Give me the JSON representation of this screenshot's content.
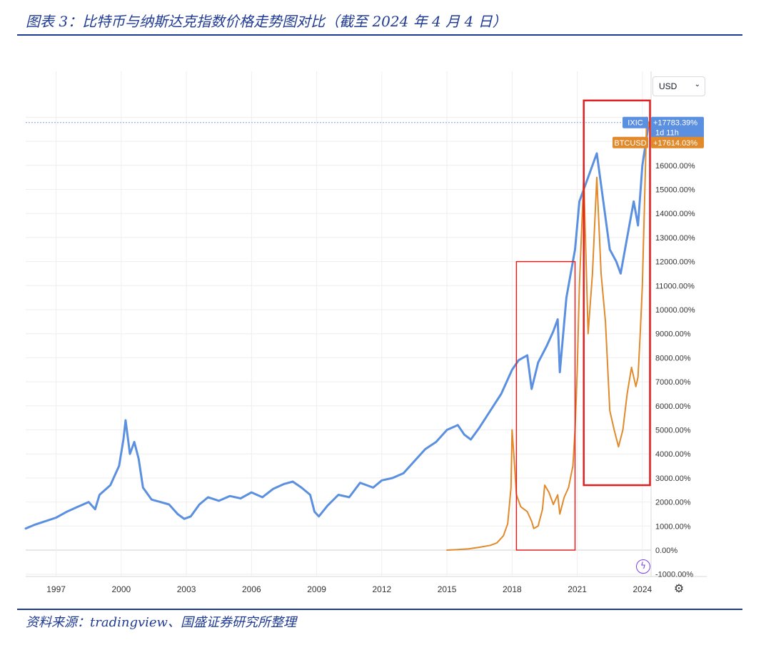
{
  "figure": {
    "title": "图表 3：比特币与纳斯达克指数价格走势图对比（截至 2024 年 4 月 4 日）",
    "source": "资料来源：tradingview、国盛证券研究所整理"
  },
  "controls": {
    "currency": "USD",
    "currency_icon": "chevron-down-icon",
    "flash_icon": "lightning-icon",
    "settings_icon": "gear-icon"
  },
  "colors": {
    "ixic": "#5b8fe0",
    "btc": "#e08a2c",
    "highlight": "#e02020",
    "grid": "#eeeeee",
    "axis_text": "#333333"
  },
  "chart_data": {
    "type": "line",
    "title": "",
    "xlabel": "",
    "ylabel": "",
    "x_ticks": [
      "1997",
      "2000",
      "2003",
      "2006",
      "2009",
      "2012",
      "2015",
      "2018",
      "2021",
      "2024"
    ],
    "y_ticks": [
      "-1000.00%",
      "0.00%",
      "1000.00%",
      "2000.00%",
      "3000.00%",
      "4000.00%",
      "5000.00%",
      "6000.00%",
      "7000.00%",
      "8000.00%",
      "9000.00%",
      "10000.00%",
      "11000.00%",
      "12000.00%",
      "13000.00%",
      "14000.00%",
      "15000.00%",
      "16000.00%"
    ],
    "ylim": [
      -1000,
      19000
    ],
    "xlim": [
      1995.6,
      2024.4
    ],
    "grid": true,
    "series": [
      {
        "name": "IXIC",
        "last_label": "+17783.39%",
        "sub_label": "1d 11h",
        "points": [
          [
            1995.6,
            900
          ],
          [
            1996.0,
            1050
          ],
          [
            1996.5,
            1200
          ],
          [
            1997.0,
            1350
          ],
          [
            1997.5,
            1600
          ],
          [
            1998.0,
            1800
          ],
          [
            1998.5,
            2000
          ],
          [
            1998.8,
            1700
          ],
          [
            1999.0,
            2300
          ],
          [
            1999.5,
            2700
          ],
          [
            1999.9,
            3500
          ],
          [
            2000.1,
            4600
          ],
          [
            2000.2,
            5400
          ],
          [
            2000.4,
            4000
          ],
          [
            2000.6,
            4500
          ],
          [
            2000.8,
            3800
          ],
          [
            2001.0,
            2600
          ],
          [
            2001.4,
            2100
          ],
          [
            2001.8,
            2000
          ],
          [
            2002.2,
            1900
          ],
          [
            2002.6,
            1500
          ],
          [
            2002.9,
            1300
          ],
          [
            2003.2,
            1400
          ],
          [
            2003.6,
            1900
          ],
          [
            2004.0,
            2200
          ],
          [
            2004.5,
            2050
          ],
          [
            2005.0,
            2250
          ],
          [
            2005.5,
            2150
          ],
          [
            2006.0,
            2400
          ],
          [
            2006.5,
            2200
          ],
          [
            2007.0,
            2550
          ],
          [
            2007.5,
            2750
          ],
          [
            2007.9,
            2850
          ],
          [
            2008.3,
            2600
          ],
          [
            2008.7,
            2300
          ],
          [
            2008.9,
            1600
          ],
          [
            2009.1,
            1400
          ],
          [
            2009.5,
            1850
          ],
          [
            2010.0,
            2300
          ],
          [
            2010.5,
            2200
          ],
          [
            2011.0,
            2800
          ],
          [
            2011.6,
            2600
          ],
          [
            2012.0,
            2900
          ],
          [
            2012.5,
            3000
          ],
          [
            2013.0,
            3200
          ],
          [
            2013.5,
            3700
          ],
          [
            2014.0,
            4200
          ],
          [
            2014.5,
            4500
          ],
          [
            2015.0,
            5000
          ],
          [
            2015.5,
            5200
          ],
          [
            2015.8,
            4800
          ],
          [
            2016.1,
            4600
          ],
          [
            2016.5,
            5100
          ],
          [
            2017.0,
            5800
          ],
          [
            2017.5,
            6500
          ],
          [
            2018.0,
            7500
          ],
          [
            2018.3,
            7900
          ],
          [
            2018.7,
            8100
          ],
          [
            2018.9,
            6700
          ],
          [
            2019.2,
            7800
          ],
          [
            2019.6,
            8500
          ],
          [
            2019.9,
            9100
          ],
          [
            2020.1,
            9600
          ],
          [
            2020.2,
            7400
          ],
          [
            2020.5,
            10500
          ],
          [
            2020.9,
            12500
          ],
          [
            2021.1,
            14500
          ],
          [
            2021.5,
            15500
          ],
          [
            2021.9,
            16500
          ],
          [
            2022.2,
            14500
          ],
          [
            2022.5,
            12500
          ],
          [
            2022.8,
            12000
          ],
          [
            2023.0,
            11500
          ],
          [
            2023.3,
            13000
          ],
          [
            2023.6,
            14500
          ],
          [
            2023.8,
            13500
          ],
          [
            2024.0,
            16000
          ],
          [
            2024.3,
            17783
          ]
        ]
      },
      {
        "name": "BTCUSD",
        "last_label": "+17614.03%",
        "points": [
          [
            2015.0,
            0
          ],
          [
            2015.5,
            20
          ],
          [
            2016.0,
            50
          ],
          [
            2016.5,
            120
          ],
          [
            2017.0,
            200
          ],
          [
            2017.3,
            300
          ],
          [
            2017.6,
            600
          ],
          [
            2017.8,
            1100
          ],
          [
            2017.95,
            2600
          ],
          [
            2018.0,
            5000
          ],
          [
            2018.1,
            3700
          ],
          [
            2018.2,
            2300
          ],
          [
            2018.4,
            1800
          ],
          [
            2018.7,
            1600
          ],
          [
            2018.9,
            1200
          ],
          [
            2019.0,
            900
          ],
          [
            2019.2,
            1000
          ],
          [
            2019.4,
            1700
          ],
          [
            2019.5,
            2700
          ],
          [
            2019.7,
            2400
          ],
          [
            2019.9,
            1900
          ],
          [
            2020.1,
            2300
          ],
          [
            2020.2,
            1500
          ],
          [
            2020.4,
            2200
          ],
          [
            2020.6,
            2600
          ],
          [
            2020.8,
            3500
          ],
          [
            2020.9,
            5000
          ],
          [
            2021.0,
            7500
          ],
          [
            2021.1,
            11000
          ],
          [
            2021.3,
            15500
          ],
          [
            2021.5,
            9000
          ],
          [
            2021.7,
            11500
          ],
          [
            2021.9,
            15500
          ],
          [
            2022.1,
            11500
          ],
          [
            2022.3,
            9500
          ],
          [
            2022.5,
            5800
          ],
          [
            2022.7,
            5000
          ],
          [
            2022.9,
            4300
          ],
          [
            2023.1,
            5000
          ],
          [
            2023.3,
            6500
          ],
          [
            2023.5,
            7600
          ],
          [
            2023.7,
            6800
          ],
          [
            2023.8,
            7200
          ],
          [
            2023.9,
            9000
          ],
          [
            2024.0,
            11000
          ],
          [
            2024.1,
            14500
          ],
          [
            2024.2,
            18000
          ],
          [
            2024.3,
            17614
          ]
        ]
      }
    ],
    "highlights": [
      {
        "x0": 2018.2,
        "x1": 2020.9,
        "y0": 0,
        "y1": 12000
      },
      {
        "x0": 2021.3,
        "x1": 2024.35,
        "y0": 2700,
        "y1": 18700
      }
    ]
  }
}
